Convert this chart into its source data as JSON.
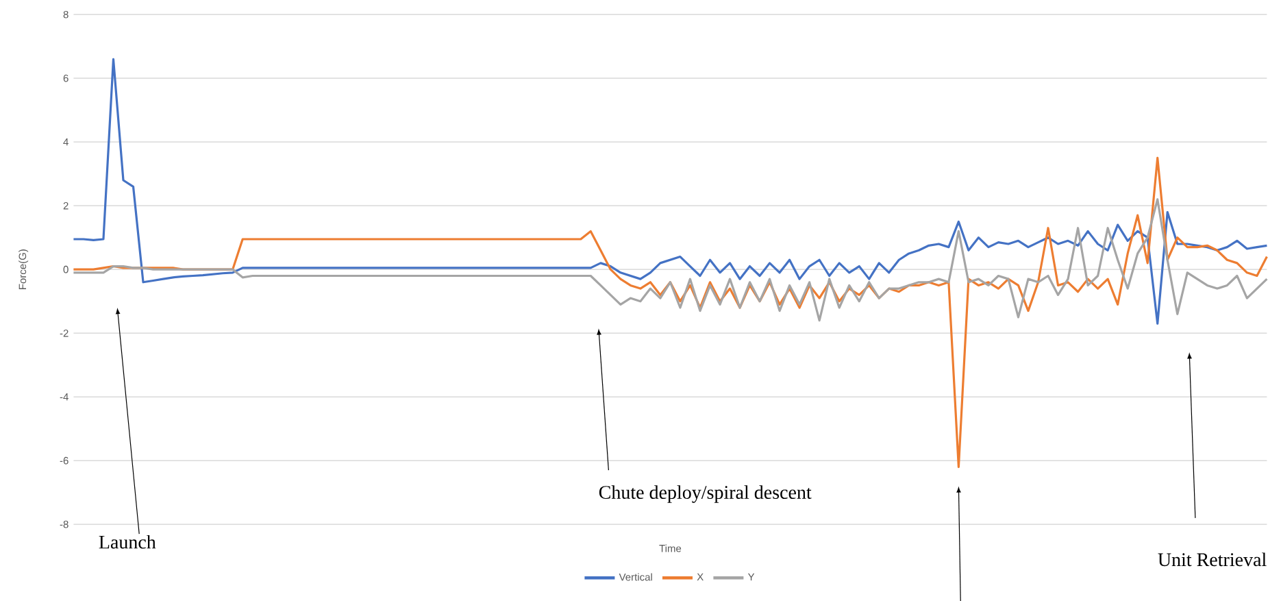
{
  "chart_data": {
    "type": "line",
    "xlabel": "Time",
    "ylabel": "Force(G)",
    "categories": [
      null,
      null,
      null,
      null,
      null,
      null,
      null,
      null,
      null,
      null,
      null,
      null,
      null,
      null,
      null,
      null,
      null,
      null,
      null,
      null,
      null,
      null,
      null,
      null,
      null,
      null,
      null,
      null,
      null,
      null,
      null,
      null,
      null,
      null,
      null,
      null,
      null,
      null,
      null,
      null,
      null,
      null,
      null,
      null,
      null,
      null,
      null,
      null,
      null,
      null,
      null,
      null,
      null,
      null,
      null,
      null,
      null,
      null,
      null,
      null,
      null,
      null,
      null,
      null,
      null,
      null,
      null,
      null,
      null,
      null,
      null,
      null,
      null,
      null,
      null,
      null,
      null,
      null,
      null,
      null,
      null,
      null,
      null,
      null,
      null,
      null,
      null,
      null,
      null,
      null,
      null,
      null,
      null,
      null,
      null,
      null,
      null,
      null,
      null,
      null,
      null,
      null,
      null,
      null,
      null,
      null,
      null,
      null,
      null,
      null,
      null,
      null,
      null,
      null,
      null,
      null,
      null,
      null,
      null,
      null,
      null
    ],
    "series": [
      {
        "name": "Vertical",
        "color": "#4472c4",
        "values": [
          0.95,
          0.95,
          0.92,
          0.95,
          6.6,
          2.8,
          2.6,
          -0.4,
          -0.35,
          -0.3,
          -0.25,
          -0.22,
          -0.2,
          -0.18,
          -0.15,
          -0.12,
          -0.1,
          0.05,
          0.05,
          0.05,
          0.05,
          0.05,
          0.05,
          0.05,
          0.05,
          0.05,
          0.05,
          0.05,
          0.05,
          0.05,
          0.05,
          0.05,
          0.05,
          0.05,
          0.05,
          0.05,
          0.05,
          0.05,
          0.05,
          0.05,
          0.05,
          0.05,
          0.05,
          0.05,
          0.05,
          0.05,
          0.05,
          0.05,
          0.05,
          0.05,
          0.05,
          0.05,
          0.05,
          0.2,
          0.1,
          -0.1,
          -0.2,
          -0.3,
          -0.1,
          0.2,
          0.3,
          0.4,
          0.1,
          -0.2,
          0.3,
          -0.1,
          0.2,
          -0.3,
          0.1,
          -0.2,
          0.2,
          -0.1,
          0.3,
          -0.3,
          0.1,
          0.3,
          -0.2,
          0.2,
          -0.1,
          0.1,
          -0.3,
          0.2,
          -0.1,
          0.3,
          0.5,
          0.6,
          0.75,
          0.8,
          0.7,
          1.5,
          0.6,
          1.0,
          0.7,
          0.85,
          0.8,
          0.9,
          0.7,
          0.85,
          1.0,
          0.8,
          0.9,
          0.75,
          1.2,
          0.8,
          0.6,
          1.4,
          0.9,
          1.2,
          1.0,
          -1.7,
          1.8,
          0.8,
          0.8,
          0.75,
          0.7,
          0.6,
          0.7,
          0.9,
          0.65,
          0.7,
          0.75
        ]
      },
      {
        "name": "X",
        "color": "#ed7d31",
        "values": [
          0,
          0,
          0,
          0.05,
          0.1,
          0.05,
          0.05,
          0.05,
          0.05,
          0.05,
          0.05,
          0,
          0,
          0,
          0,
          0,
          0,
          0.95,
          0.95,
          0.95,
          0.95,
          0.95,
          0.95,
          0.95,
          0.95,
          0.95,
          0.95,
          0.95,
          0.95,
          0.95,
          0.95,
          0.95,
          0.95,
          0.95,
          0.95,
          0.95,
          0.95,
          0.95,
          0.95,
          0.95,
          0.95,
          0.95,
          0.95,
          0.95,
          0.95,
          0.95,
          0.95,
          0.95,
          0.95,
          0.95,
          0.95,
          0.95,
          1.2,
          0.6,
          0,
          -0.3,
          -0.5,
          -0.6,
          -0.4,
          -0.8,
          -0.4,
          -1.0,
          -0.5,
          -1.2,
          -0.4,
          -1.0,
          -0.6,
          -1.2,
          -0.5,
          -1.0,
          -0.4,
          -1.1,
          -0.6,
          -1.2,
          -0.5,
          -0.9,
          -0.4,
          -1.0,
          -0.6,
          -0.8,
          -0.5,
          -0.9,
          -0.6,
          -0.7,
          -0.5,
          -0.5,
          -0.4,
          -0.5,
          -0.4,
          -6.2,
          -0.3,
          -0.5,
          -0.4,
          -0.6,
          -0.3,
          -0.5,
          -1.3,
          -0.4,
          1.3,
          -0.5,
          -0.4,
          -0.7,
          -0.3,
          -0.6,
          -0.3,
          -1.1,
          0.5,
          1.7,
          0.2,
          3.5,
          0.3,
          1.0,
          0.7,
          0.7,
          0.75,
          0.6,
          0.3,
          0.2,
          -0.1,
          -0.2,
          0.4
        ]
      },
      {
        "name": "Y",
        "color": "#a5a5a5",
        "values": [
          -0.1,
          -0.1,
          -0.1,
          -0.1,
          0.1,
          0.1,
          0.05,
          0.05,
          0,
          0,
          0,
          0,
          0,
          0,
          0,
          0,
          0,
          -0.25,
          -0.2,
          -0.2,
          -0.2,
          -0.2,
          -0.2,
          -0.2,
          -0.2,
          -0.2,
          -0.2,
          -0.2,
          -0.2,
          -0.2,
          -0.2,
          -0.2,
          -0.2,
          -0.2,
          -0.2,
          -0.2,
          -0.2,
          -0.2,
          -0.2,
          -0.2,
          -0.2,
          -0.2,
          -0.2,
          -0.2,
          -0.2,
          -0.2,
          -0.2,
          -0.2,
          -0.2,
          -0.2,
          -0.2,
          -0.2,
          -0.2,
          -0.5,
          -0.8,
          -1.1,
          -0.9,
          -1.0,
          -0.6,
          -0.9,
          -0.4,
          -1.2,
          -0.3,
          -1.3,
          -0.5,
          -1.1,
          -0.3,
          -1.2,
          -0.4,
          -1.0,
          -0.3,
          -1.3,
          -0.5,
          -1.1,
          -0.4,
          -1.6,
          -0.3,
          -1.2,
          -0.5,
          -1.0,
          -0.4,
          -0.9,
          -0.6,
          -0.6,
          -0.5,
          -0.4,
          -0.4,
          -0.3,
          -0.4,
          1.2,
          -0.4,
          -0.3,
          -0.5,
          -0.2,
          -0.3,
          -1.5,
          -0.3,
          -0.4,
          -0.2,
          -0.8,
          -0.3,
          1.3,
          -0.5,
          -0.2,
          1.3,
          0.3,
          -0.6,
          0.5,
          1.0,
          2.2,
          0.3,
          -1.4,
          -0.1,
          -0.3,
          -0.5,
          -0.6,
          -0.5,
          -0.2,
          -0.9,
          -0.6,
          -0.3
        ]
      }
    ],
    "ylim": [
      -8,
      8
    ],
    "yticks": [
      -8,
      -6,
      -4,
      -2,
      0,
      2,
      4,
      6,
      8
    ],
    "grid": "y",
    "legend": "bottom",
    "line_style": "solid",
    "annotations": [
      "Launch",
      "Chute deploy/spiral descent",
      "Unit Retrieval"
    ]
  }
}
